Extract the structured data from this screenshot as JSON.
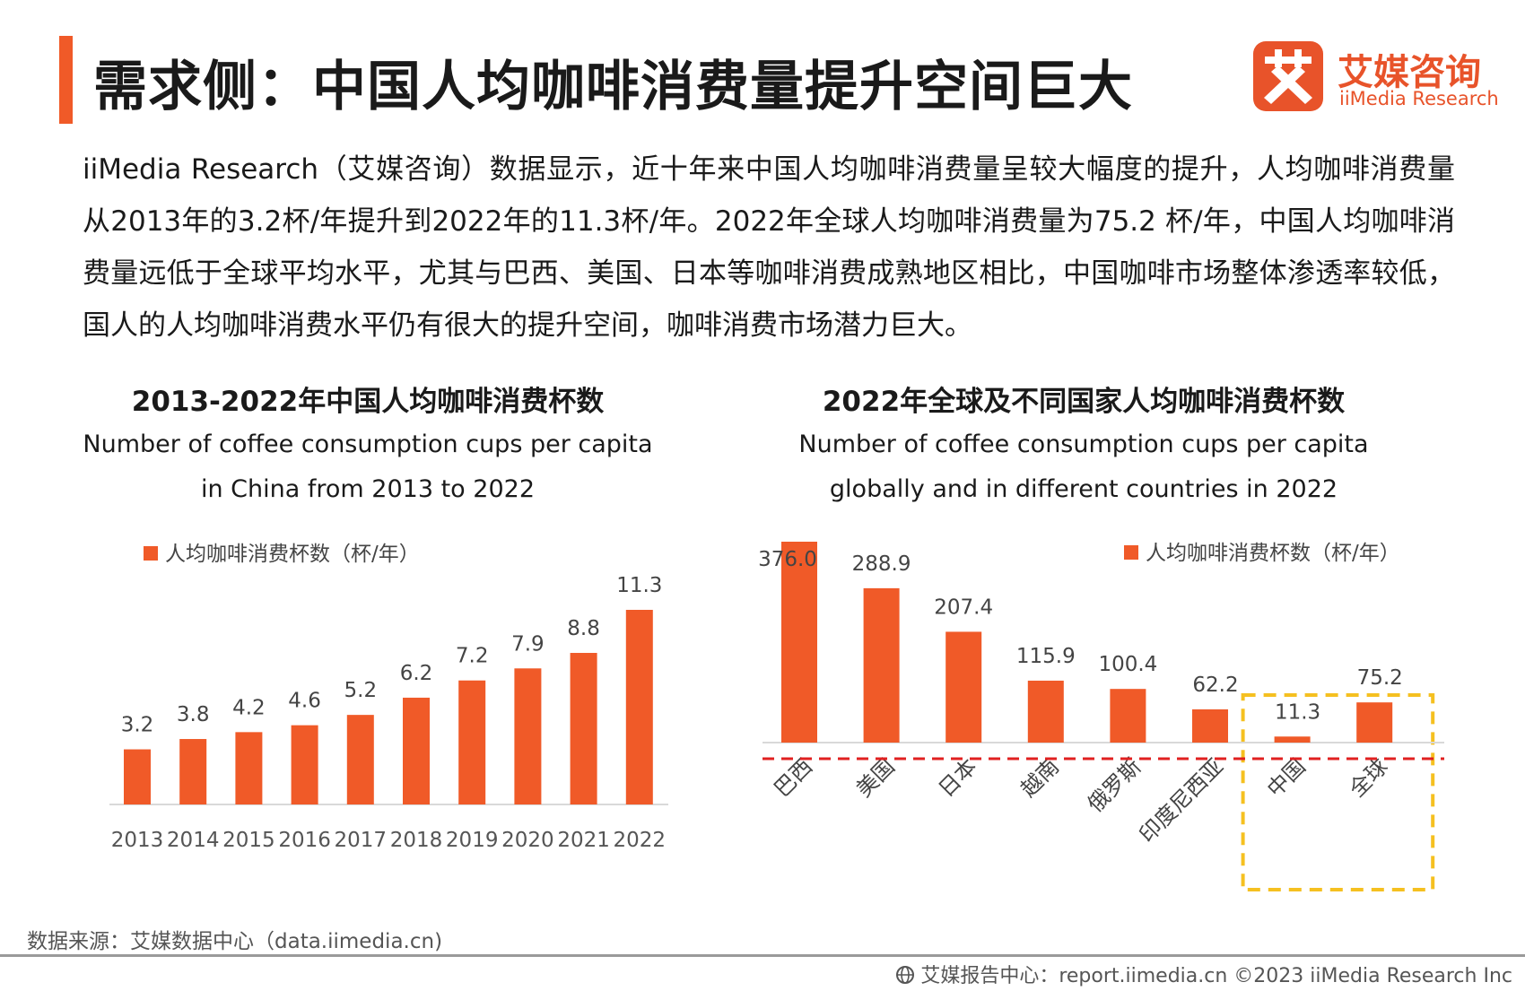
{
  "header": {
    "title": "需求侧：中国人均咖啡消费量提升空间巨大",
    "logo_cn": "艾媒咨询",
    "logo_en": "iiMedia Research",
    "logo_mark_icon": "ai-character-logo-icon",
    "accent_color": "#f05a28"
  },
  "intro": "iiMedia Research（艾媒咨询）数据显示，近十年来中国人均咖啡消费量呈较大幅度的提升，人均咖啡消费量从2013年的3.2杯/年提升到2022年的11.3杯/年。2022年全球人均咖啡消费量为75.2 杯/年，中国人均咖啡消费量远低于全球平均水平，尤其与巴西、美国、日本等咖啡消费成熟地区相比，中国咖啡市场整体渗透率较低，国人的人均咖啡消费水平仍有很大的提升空间，咖啡消费市场潜力巨大。",
  "chart_data": [
    {
      "type": "bar",
      "title": "2013-2022年中国人均咖啡消费杯数",
      "subtitle_line1": "Number of coffee consumption cups per capita",
      "subtitle_line2": "in China from 2013 to 2022",
      "legend": "人均咖啡消费杯数（杯/年）",
      "categories": [
        "2013",
        "2014",
        "2015",
        "2016",
        "2017",
        "2018",
        "2019",
        "2020",
        "2021",
        "2022"
      ],
      "values": [
        3.2,
        3.8,
        4.2,
        4.6,
        5.2,
        6.2,
        7.2,
        7.9,
        8.8,
        11.3
      ],
      "labels": [
        "3.2",
        "3.8",
        "4.2",
        "4.6",
        "5.2",
        "6.2",
        "7.2",
        "7.9",
        "8.8",
        "11.3"
      ],
      "ylim": [
        0,
        12
      ],
      "grid": false,
      "bar_color": "#f05a28"
    },
    {
      "type": "bar",
      "title": "2022年全球及不同国家人均咖啡消费杯数",
      "subtitle_line1": "Number of coffee consumption cups per capita",
      "subtitle_line2": "globally and in different countries in 2022",
      "legend": "人均咖啡消费杯数（杯/年）",
      "categories": [
        "巴西",
        "美国",
        "日本",
        "越南",
        "俄罗斯",
        "印度尼西亚",
        "中国",
        "全球"
      ],
      "values": [
        376.0,
        288.9,
        207.4,
        115.9,
        100.4,
        62.2,
        11.3,
        75.2
      ],
      "labels": [
        "376.0",
        "288.9",
        "207.4",
        "115.9",
        "100.4",
        "62.2",
        "11.3",
        "75.2"
      ],
      "ylim": [
        0,
        376
      ],
      "grid": false,
      "bar_color": "#f05a28",
      "highlight_categories": [
        "中国",
        "全球"
      ],
      "highlight_color": "#f5c020",
      "reference_line_color": "#e02020"
    }
  ],
  "source": "数据来源：艾媒数据中心（data.iimedia.cn)",
  "footer": {
    "icon": "globe-icon",
    "text": "艾媒报告中心：report.iimedia.cn  ©2023  iiMedia Research  Inc"
  }
}
